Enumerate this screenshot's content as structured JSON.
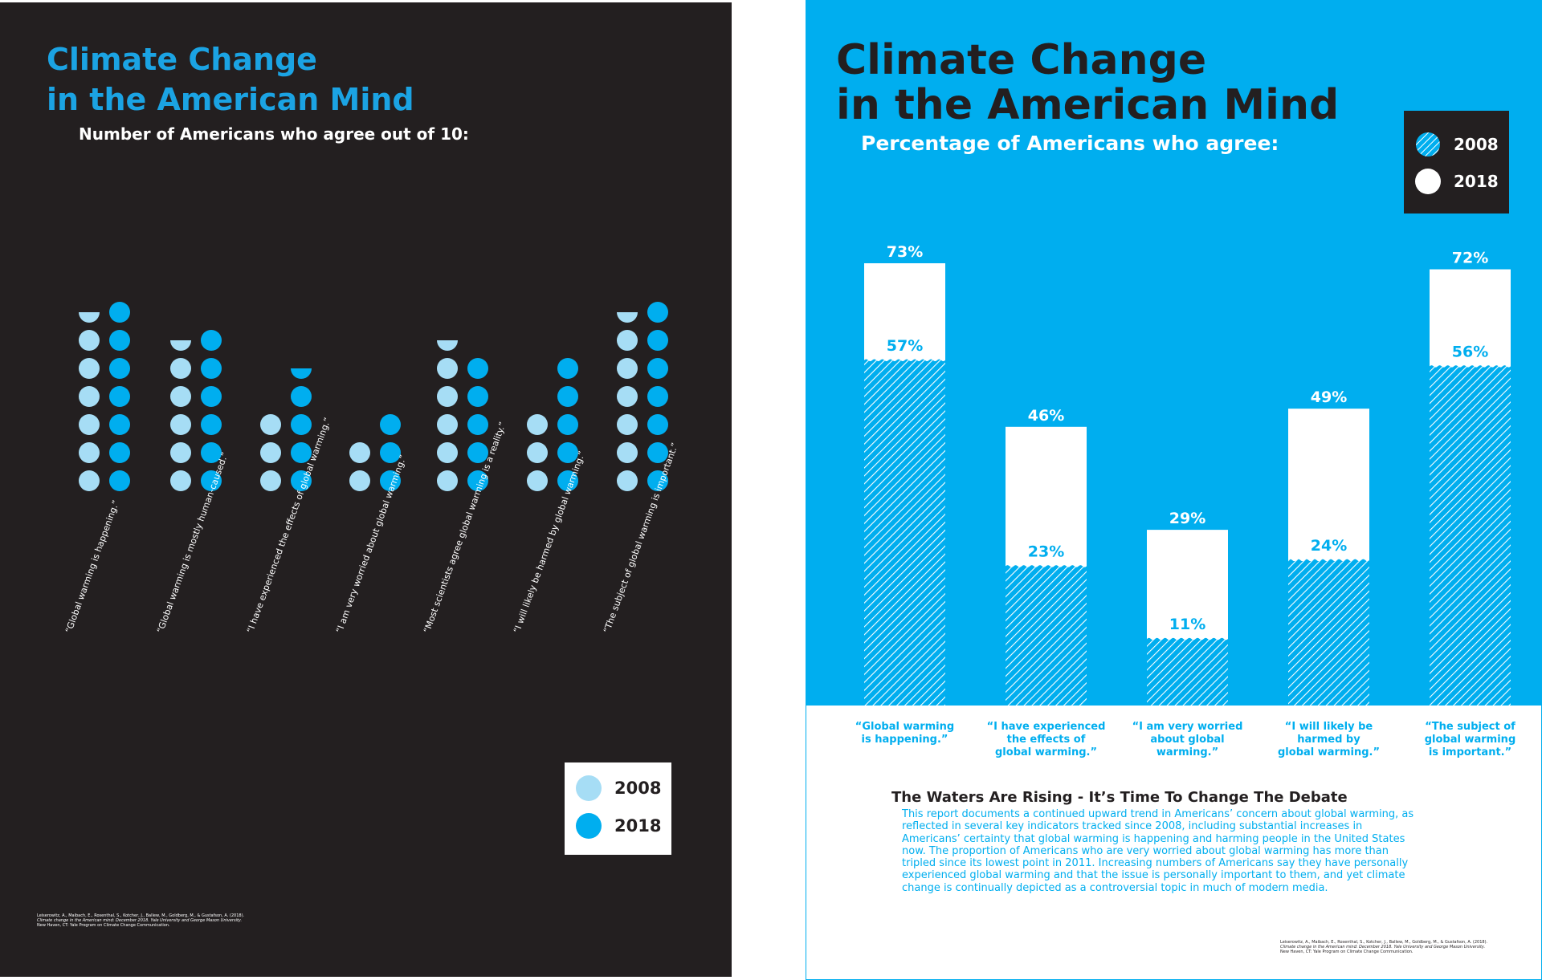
{
  "left_poster": {
    "title_line1": "Climate Change",
    "title_line2": "in the American Mind",
    "subtitle": "Number of Americans who agree out of 10:",
    "legend": [
      {
        "label": "2008",
        "color": "#a6ddf5"
      },
      {
        "label": "2018",
        "color": "#00aeef"
      }
    ],
    "citation_line1": "Leiserowitz, A., Maibach, E., Rosenthal, S., Kotcher, J., Ballew, M., Goldberg, M., & Gustafson, A. (2018).",
    "citation_line2": "Climate change in the American mind: December 2018. Yale University and George Mason University.",
    "citation_line3": "New Haven, CT: Yale Program on Climate Change Communication."
  },
  "right_poster": {
    "title_line1": "Climate Change",
    "title_line2": "in the American Mind",
    "subtitle": "Percentage of Americans who agree:",
    "legend": [
      {
        "label": "2008",
        "color": "#00aeef"
      },
      {
        "label": "2018",
        "color": "#ffffff"
      }
    ],
    "body_heading": "The Waters Are Rising - It’s Time To Change The Debate",
    "body_text": "This report documents a continued upward trend in Americans’ concern about global warming, as reflected in several key indicators tracked since 2008, including substantial increases in Americans’ certainty that global warming is happening and harming people in the United States now. The proportion of Americans who are very worried about global warming has more than tripled since its lowest point in 2011. Increasing numbers of Americans say they have personally experienced global warming and that the issue is personally important to them, and yet climate change is continually depicted as a controversial topic in much of modern media.",
    "citation_line1": "Leiserowitz, A., Maibach, E., Rosenthal, S., Kotcher, J., Ballew, M., Goldberg, M., & Gustafson, A. (2018).",
    "citation_line2": "Climate change in the American mind: December 2018. Yale University and George Mason University.",
    "citation_line3": "New Haven, CT: Yale Program on Climate Change Communication."
  },
  "chart_data": [
    {
      "type": "bar",
      "title": "Number of Americans who agree out of 10:",
      "categories": [
        "“Global warming is happening.”",
        "“Global warming is mostly human-caused.”",
        "“I have experienced the effects of global warming.”",
        "“I am very worried about global warming.”",
        "“Most scientists agree global warming is a reality.”",
        "“I will likely be harmed by global warming.”",
        "“The subject of global warming is important.”"
      ],
      "series": [
        {
          "name": "2008",
          "values": [
            6.5,
            5.5,
            3,
            2,
            5.5,
            3,
            6.5
          ]
        },
        {
          "name": "2018",
          "values": [
            7,
            6,
            4.5,
            3,
            5,
            5,
            7
          ]
        }
      ],
      "ylim": [
        0,
        10
      ],
      "legend": "bottom-right"
    },
    {
      "type": "bar",
      "title": "Percentage of Americans who agree:",
      "categories": [
        "“Global warming\nis happening.”",
        "“I have experienced\nthe effects of\nglobal warming.”",
        "“I am very worried\nabout global warming.”",
        "“I will likely be\nharmed by\nglobal warming.”",
        "“The subject of\nglobal warming\nis important.”"
      ],
      "series": [
        {
          "name": "2008",
          "values": [
            57,
            23,
            11,
            24,
            56
          ],
          "labels": [
            "57%",
            "23%",
            "11%",
            "24%",
            "56%"
          ]
        },
        {
          "name": "2018",
          "values": [
            73,
            46,
            29,
            49,
            72
          ],
          "labels": [
            "73%",
            "46%",
            "29%",
            "49%",
            "72%"
          ]
        }
      ],
      "legend": "top-right"
    }
  ]
}
